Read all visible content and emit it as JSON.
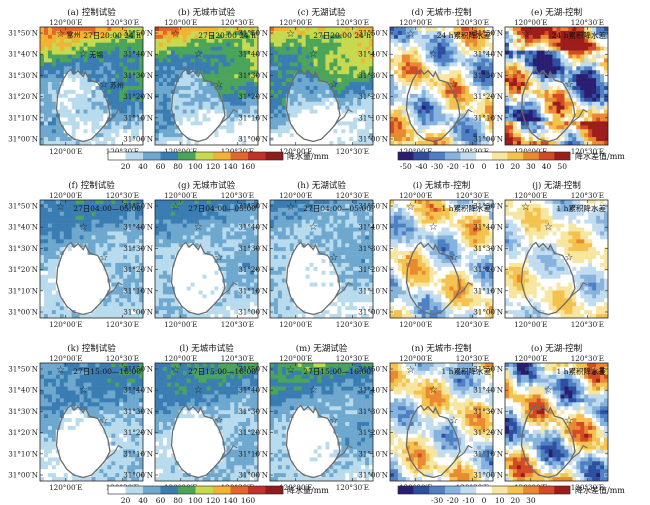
{
  "chart_data": {
    "type": "heatmap",
    "grid": false,
    "x_ticks": [
      "120°00′E",
      "120°30′E"
    ],
    "y_ticks": [
      "31°50′N",
      "31°40′N",
      "31°30′N",
      "31°20′N",
      "31°10′N",
      "31°00′N"
    ],
    "panels": [
      {
        "id": "a",
        "title": "(a) 控制试验",
        "label": "27日20:00 24 h",
        "kind": "precip",
        "level": 0.82,
        "grad": 1.0,
        "cities": true
      },
      {
        "id": "b",
        "title": "(b) 无城市试验",
        "label": "27日20:00 24 h",
        "kind": "precip",
        "level": 0.84,
        "grad": 1.0
      },
      {
        "id": "c",
        "title": "(c) 无湖试验",
        "label": "27日20:00 24 h",
        "kind": "precip",
        "level": 0.86,
        "grad": 1.0
      },
      {
        "id": "d",
        "title": "(d) 无城市-控制",
        "label": "24 h累积降水差",
        "kind": "diff",
        "amp": 0.85
      },
      {
        "id": "e",
        "title": "(e) 无湖-控制",
        "label": "24 h累积降水差",
        "kind": "diff",
        "amp": 1.3
      },
      {
        "id": "f",
        "title": "(f) 控制试验",
        "label": "27日04:00—05:00",
        "kind": "precip",
        "level": 0.45,
        "grad": 0.4
      },
      {
        "id": "g",
        "title": "(g) 无城市试验",
        "label": "27日04:00—05:00",
        "kind": "precip",
        "level": 0.45,
        "grad": 0.4
      },
      {
        "id": "h",
        "title": "(h) 无湖试验",
        "label": "27日04:00—05:00",
        "kind": "precip",
        "level": 0.38,
        "grad": 0.3
      },
      {
        "id": "i",
        "title": "(i) 无城市-控制",
        "label": "1 h累积降水差",
        "kind": "diff",
        "amp": 0.7
      },
      {
        "id": "j",
        "title": "(j) 无湖-控制",
        "label": "1 h累积降水差",
        "kind": "diff",
        "amp": 0.5
      },
      {
        "id": "k",
        "title": "(k) 控制试验",
        "label": "27日15:00—16:00",
        "kind": "precip",
        "level": 0.45,
        "grad": 0.5
      },
      {
        "id": "l",
        "title": "(l) 无城市试验",
        "label": "27日15:00—16:00",
        "kind": "precip",
        "level": 0.5,
        "grad": 0.6
      },
      {
        "id": "m",
        "title": "(m) 无湖试验",
        "label": "27日15:00—16:00",
        "kind": "precip",
        "level": 0.5,
        "grad": 0.8
      },
      {
        "id": "n",
        "title": "(n) 无城市-控制",
        "label": "1 h累积降水差",
        "kind": "diff",
        "amp": 0.7
      },
      {
        "id": "o",
        "title": "(o) 无湖-控制",
        "label": "1 h累积降水差",
        "kind": "diff",
        "amp": 1.0
      }
    ],
    "cities": [
      "常州",
      "无锡",
      "苏州"
    ],
    "colorbars": [
      {
        "id": "precip_top",
        "unit": "降水量/mm",
        "ticks": [
          "20",
          "40",
          "60",
          "80",
          "100",
          "120",
          "140",
          "160"
        ],
        "colors": [
          "#ffffff",
          "#b9dbee",
          "#6fa8cf",
          "#3a7db2",
          "#4aa55a",
          "#c7d94f",
          "#f2b233",
          "#e3662b",
          "#c13229",
          "#8e1c1c"
        ]
      },
      {
        "id": "diff_top",
        "unit": "降水差值/mm",
        "ticks": [
          "-50",
          "-40",
          "-30",
          "-20",
          "-10",
          "0",
          "10",
          "20",
          "30",
          "40",
          "50"
        ],
        "colors": [
          "#2a1e72",
          "#2d4fa0",
          "#4f80c4",
          "#86b3dd",
          "#c2dcef",
          "#ffffff",
          "#f7e6a0",
          "#f4c24e",
          "#e98a33",
          "#d24a26",
          "#9d1d1a"
        ]
      },
      {
        "id": "precip_bottom",
        "unit": "降水量/mm",
        "ticks": [
          "20",
          "40",
          "60",
          "80",
          "100",
          "120",
          "140",
          "160"
        ],
        "colors": [
          "#ffffff",
          "#b9dbee",
          "#6fa8cf",
          "#3a7db2",
          "#4aa55a",
          "#c7d94f",
          "#f2b233",
          "#e3662b",
          "#c13229",
          "#8e1c1c"
        ]
      },
      {
        "id": "diff_bottom",
        "unit": "降水差值/mm",
        "ticks": [
          "-30",
          "-20",
          "-10",
          "0",
          "10",
          "20",
          "30"
        ],
        "colors": [
          "#2a1e72",
          "#2d4fa0",
          "#4f80c4",
          "#86b3dd",
          "#c2dcef",
          "#ffffff",
          "#f7e6a0",
          "#f4c24e",
          "#e98a33",
          "#d24a26",
          "#9d1d1a"
        ]
      }
    ]
  }
}
